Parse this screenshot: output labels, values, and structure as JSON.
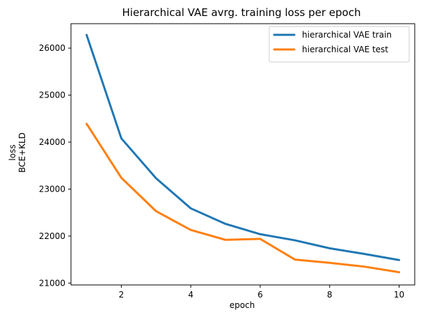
{
  "chart_data": {
    "type": "line",
    "title": "Hierarchical VAE avrg. training loss per epoch",
    "xlabel": "epoch",
    "ylabel_lines": [
      "loss",
      "BCE+KLD"
    ],
    "x": [
      1,
      2,
      3,
      4,
      5,
      6,
      7,
      8,
      9,
      10
    ],
    "xlim": [
      0.55,
      10.45
    ],
    "ylim": [
      20960,
      26520
    ],
    "x_ticks": [
      2,
      4,
      6,
      8,
      10
    ],
    "y_ticks": [
      21000,
      22000,
      23000,
      24000,
      25000,
      26000
    ],
    "grid": false,
    "legend_position": "top-right",
    "series": [
      {
        "name": "hierarchical VAE train",
        "color": "#1f77b4",
        "values": [
          26280,
          24080,
          23230,
          22590,
          22260,
          22040,
          21910,
          21740,
          21620,
          21490
        ]
      },
      {
        "name": "hierarchical VAE test",
        "color": "#ff7f0e",
        "values": [
          24390,
          23240,
          22530,
          22130,
          21920,
          21940,
          21500,
          21430,
          21350,
          21230
        ]
      }
    ]
  }
}
